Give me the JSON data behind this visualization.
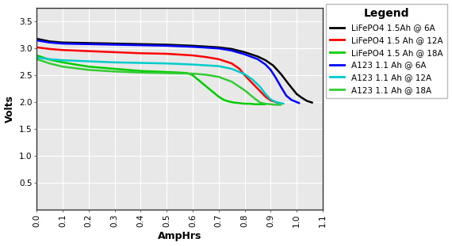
{
  "title": "",
  "xlabel": "AmpHrs",
  "ylabel": "Volts",
  "xlim": [
    0.0,
    1.1
  ],
  "ylim": [
    0.0,
    3.75
  ],
  "xticks": [
    0.0,
    0.1,
    0.2,
    0.3,
    0.4,
    0.5,
    0.6,
    0.7,
    0.8,
    0.9,
    1.0,
    1.1
  ],
  "yticks": [
    0.5,
    1.0,
    1.5,
    2.0,
    2.5,
    3.0,
    3.5
  ],
  "fig_bg_color": "#ffffff",
  "plot_bg_color": "#e8e8e8",
  "legend_title": "Legend",
  "legend_bg": "#ffffff",
  "series": [
    {
      "label": "LiFePO4 1.5Ah @ 6A",
      "color": "#000000",
      "lw": 1.8,
      "x": [
        0.0,
        0.05,
        0.1,
        0.2,
        0.3,
        0.4,
        0.5,
        0.6,
        0.7,
        0.75,
        0.8,
        0.85,
        0.88,
        0.91,
        0.94,
        0.97,
        1.0,
        1.02,
        1.04,
        1.06
      ],
      "y": [
        3.18,
        3.13,
        3.11,
        3.1,
        3.09,
        3.08,
        3.07,
        3.05,
        3.02,
        2.99,
        2.93,
        2.85,
        2.78,
        2.68,
        2.52,
        2.33,
        2.15,
        2.08,
        2.02,
        1.99
      ]
    },
    {
      "label": "LiFePO4 1.5 Ah @ 12A",
      "color": "#ff0000",
      "lw": 1.8,
      "x": [
        0.0,
        0.05,
        0.1,
        0.2,
        0.3,
        0.4,
        0.5,
        0.6,
        0.65,
        0.7,
        0.75,
        0.78,
        0.8,
        0.83,
        0.86,
        0.88,
        0.9,
        0.92,
        0.935
      ],
      "y": [
        3.02,
        2.99,
        2.97,
        2.95,
        2.93,
        2.91,
        2.9,
        2.87,
        2.84,
        2.8,
        2.72,
        2.62,
        2.5,
        2.35,
        2.2,
        2.1,
        2.03,
        2.0,
        1.97
      ]
    },
    {
      "label": "LiFePO4 1.5 Ah @ 18A",
      "color": "#00cc00",
      "lw": 1.8,
      "x": [
        0.0,
        0.05,
        0.1,
        0.2,
        0.3,
        0.4,
        0.5,
        0.55,
        0.58,
        0.6,
        0.62,
        0.65,
        0.68,
        0.7,
        0.72,
        0.74,
        0.76,
        0.78,
        0.8,
        0.82,
        0.84,
        0.86,
        0.88
      ],
      "y": [
        2.87,
        2.79,
        2.74,
        2.66,
        2.62,
        2.58,
        2.56,
        2.55,
        2.54,
        2.5,
        2.42,
        2.3,
        2.18,
        2.1,
        2.04,
        2.01,
        1.99,
        1.98,
        1.97,
        1.97,
        1.96,
        1.96,
        1.96
      ]
    },
    {
      "label": "A123 1.1 Ah @ 6A",
      "color": "#0000ff",
      "lw": 1.8,
      "x": [
        0.0,
        0.05,
        0.1,
        0.2,
        0.3,
        0.4,
        0.5,
        0.6,
        0.7,
        0.75,
        0.8,
        0.85,
        0.88,
        0.9,
        0.92,
        0.94,
        0.96,
        0.98,
        1.0,
        1.01
      ],
      "y": [
        3.15,
        3.11,
        3.09,
        3.08,
        3.07,
        3.06,
        3.05,
        3.03,
        3.0,
        2.96,
        2.89,
        2.8,
        2.7,
        2.6,
        2.45,
        2.28,
        2.12,
        2.04,
        2.0,
        1.98
      ]
    },
    {
      "label": "A123 1.1 Ah @ 12A",
      "color": "#00cccc",
      "lw": 1.8,
      "x": [
        0.0,
        0.05,
        0.1,
        0.2,
        0.3,
        0.4,
        0.5,
        0.6,
        0.7,
        0.75,
        0.8,
        0.83,
        0.86,
        0.88,
        0.9,
        0.92,
        0.94,
        0.95
      ],
      "y": [
        2.83,
        2.8,
        2.78,
        2.76,
        2.74,
        2.73,
        2.72,
        2.7,
        2.67,
        2.62,
        2.52,
        2.42,
        2.28,
        2.15,
        2.05,
        2.0,
        1.98,
        1.97
      ]
    },
    {
      "label": "A123 1.1 Ah @ 18A",
      "color": "#33cc33",
      "lw": 1.8,
      "x": [
        0.0,
        0.05,
        0.1,
        0.2,
        0.3,
        0.4,
        0.5,
        0.6,
        0.65,
        0.7,
        0.75,
        0.8,
        0.84,
        0.86,
        0.88,
        0.9,
        0.92,
        0.94
      ],
      "y": [
        2.8,
        2.72,
        2.66,
        2.6,
        2.57,
        2.55,
        2.54,
        2.53,
        2.51,
        2.47,
        2.38,
        2.22,
        2.06,
        1.99,
        1.97,
        1.96,
        1.95,
        1.95
      ]
    }
  ]
}
